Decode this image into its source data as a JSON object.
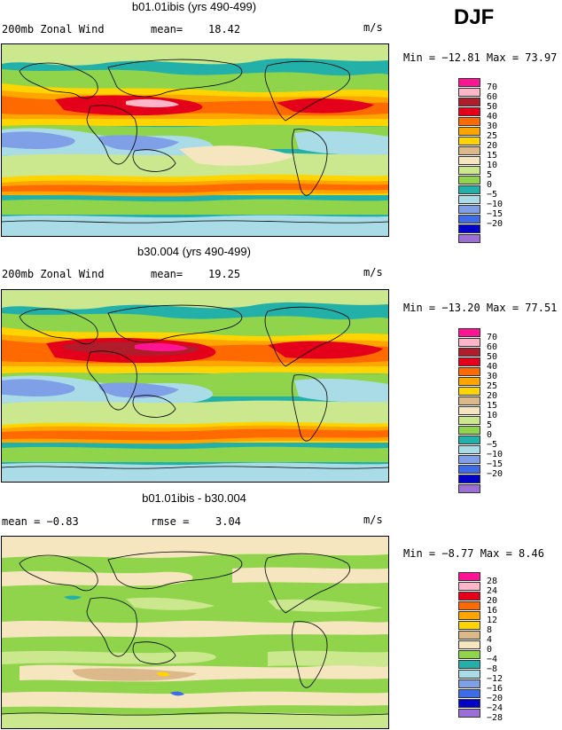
{
  "season": "DJF",
  "panels": [
    {
      "title": "b01.01ibis (yrs 490-499)",
      "left_label": "200mb Zonal Wind",
      "stat_label": "mean=",
      "stat_value": "18.42",
      "units": "m/s",
      "minmax": "Min = −12.81 Max =  73.97",
      "levels": [
        "70",
        "60",
        "50",
        "40",
        "30",
        "25",
        "20",
        "15",
        "10",
        "5",
        "0",
        "−5",
        "−10",
        "−15",
        "−20"
      ]
    },
    {
      "title": "b30.004 (yrs 490-499)",
      "left_label": "200mb Zonal Wind",
      "stat_label": "mean=",
      "stat_value": "19.25",
      "units": "m/s",
      "minmax": "Min = −13.20 Max =  77.51",
      "levels": [
        "70",
        "60",
        "50",
        "40",
        "30",
        "25",
        "20",
        "15",
        "10",
        "5",
        "0",
        "−5",
        "−10",
        "−15",
        "−20"
      ]
    },
    {
      "title": "b01.01ibis - b30.004",
      "left_label": "mean =   −0.83",
      "stat_label": "rmse =",
      "stat_value": "3.04",
      "units": "m/s",
      "minmax": "Min =  −8.77 Max =   8.46",
      "levels": [
        "28",
        "24",
        "20",
        "16",
        "12",
        "8",
        "4",
        "0",
        "−4",
        "−8",
        "−12",
        "−16",
        "−20",
        "−24",
        "−28"
      ]
    }
  ],
  "colors": {
    "abs": [
      "#9b6fd6",
      "#0000c8",
      "#3e6be8",
      "#7f9fe6",
      "#aadce8",
      "#22b0a8",
      "#8fd44a",
      "#cbe88f",
      "#f5e6c0",
      "#dcb98a",
      "#ffd400",
      "#ffa500",
      "#ff6a00",
      "#e4001a",
      "#b01c2a",
      "#ffb6c8",
      "#ff1493"
    ],
    "diff": [
      "#9b6fd6",
      "#0000c8",
      "#3e6be8",
      "#7f9fe6",
      "#aadce8",
      "#22b0a8",
      "#8fd44a",
      "#f5e6c0",
      "#dcb98a",
      "#ffd400",
      "#ffa500",
      "#ff6a00",
      "#e4001a",
      "#ffb6c8",
      "#ff1493"
    ]
  }
}
